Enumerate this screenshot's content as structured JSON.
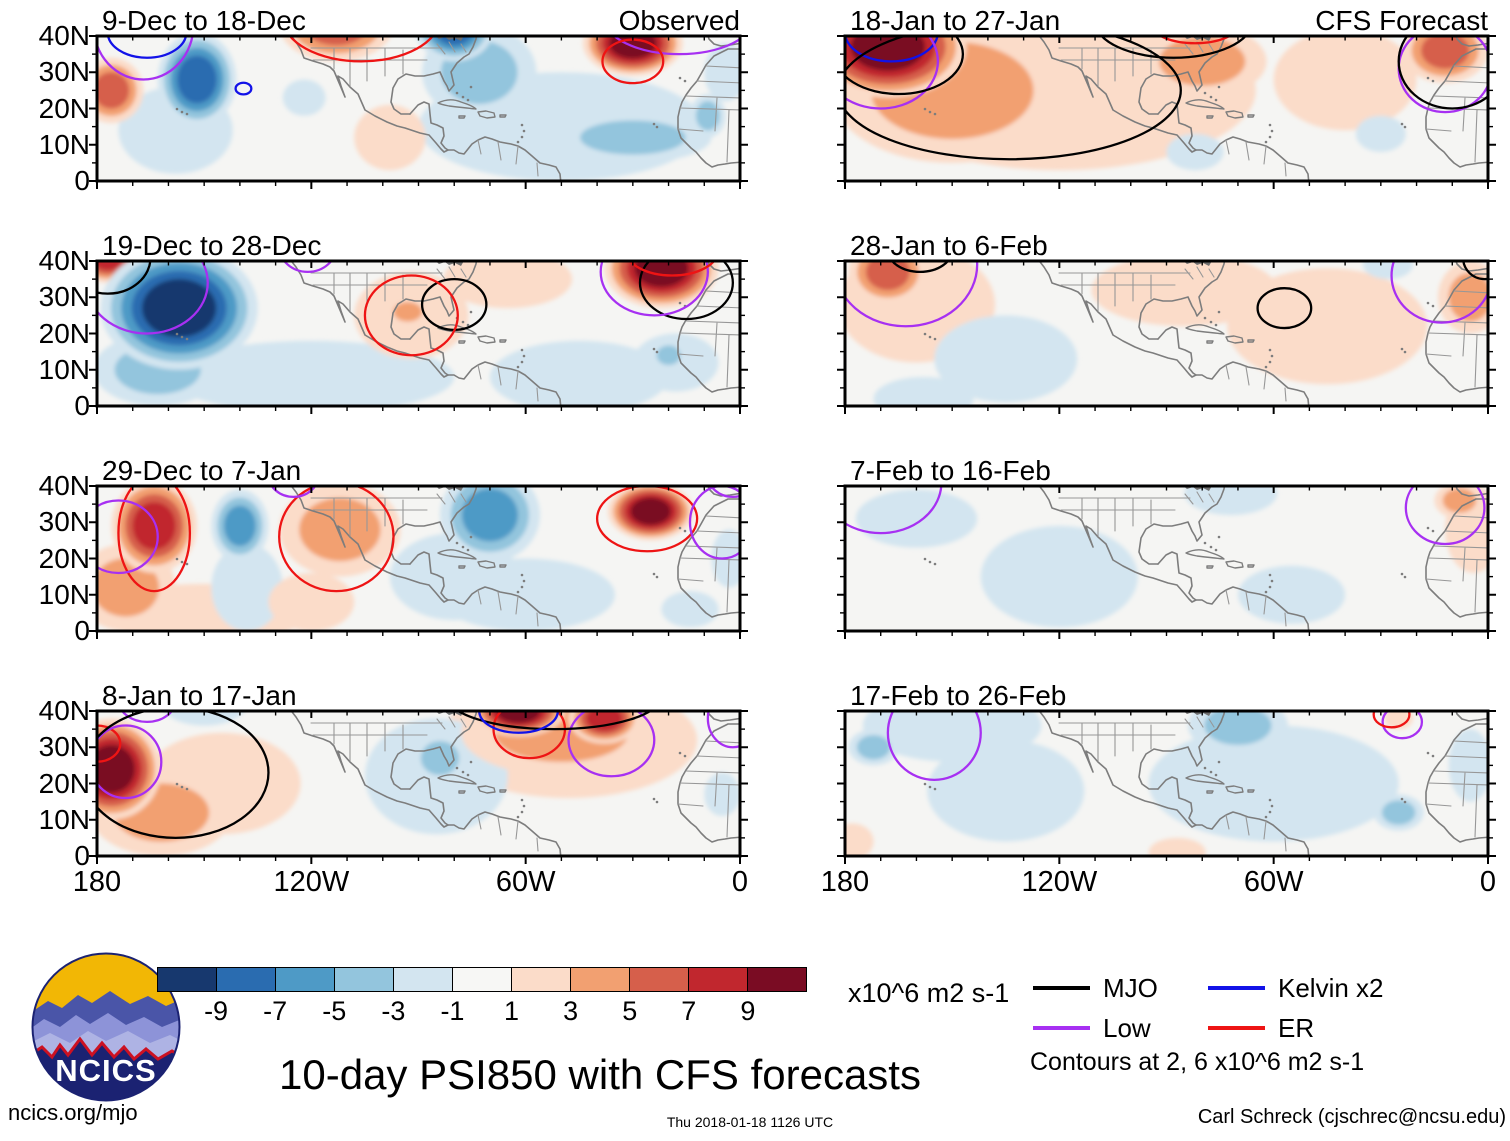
{
  "figure": {
    "bg": "#ffffff",
    "map_bg": "#f5f5f3",
    "coast_color": "#7d7d7d"
  },
  "title": "10-day PSI850 with CFS forecasts",
  "logo": {
    "label": "NCICS"
  },
  "footer": {
    "site": "ncics.org/mjo",
    "timestamp": "Thu 2018-01-18 1126 UTC",
    "credit": "Carl Schreck (cjschrec@ncsu.edu)"
  },
  "axes": {
    "x_tick_labels": [
      "180",
      "120W",
      "60W",
      "0"
    ],
    "x_tick_lons": [
      -180,
      -120,
      -60,
      0
    ],
    "y_tick_labels": [
      "40N",
      "30N",
      "20N",
      "10N",
      "0"
    ],
    "y_tick_lats": [
      40,
      30,
      20,
      10,
      0
    ],
    "lon_range": [
      -180,
      0
    ],
    "lat_range": [
      0,
      40
    ]
  },
  "colorbar": {
    "units": "x10^6 m2 s-1",
    "tick_labels": [
      "-9",
      "-7",
      "-5",
      "-3",
      "-1",
      "1",
      "3",
      "5",
      "7",
      "9"
    ],
    "colors": [
      "#17386e",
      "#2a6cb0",
      "#4e9ac6",
      "#93c5dd",
      "#d3e5f0",
      "#f7f7f5",
      "#fbdcc9",
      "#f2a071",
      "#d65f4b",
      "#c1272e",
      "#7a0c23"
    ]
  },
  "legend": {
    "items": [
      {
        "label": "MJO",
        "wave": "mjo",
        "color": "#000000"
      },
      {
        "label": "Kelvin x2",
        "wave": "kelvin",
        "color": "#1212e8"
      },
      {
        "label": "Low",
        "wave": "low",
        "color": "#a730f2"
      },
      {
        "label": "ER",
        "wave": "er",
        "color": "#ee1414"
      }
    ],
    "note": "Contours at 2, 6 x10^6 m2 s-1"
  },
  "chart_data": {
    "type": "filled-contour-maps",
    "variable": "PSI850 anomaly",
    "units": "x10^6 m2 s-1",
    "contour_levels": [
      2,
      6
    ],
    "lon_range": [
      -180,
      0
    ],
    "lat_range": [
      0,
      40
    ],
    "anomaly_format": [
      "lon",
      "lat",
      "rlon_deg",
      "rlat_deg",
      "peak_value"
    ],
    "contour_format": [
      "wave",
      "lon",
      "lat",
      "rlon_deg",
      "rlat_deg"
    ],
    "panels": [
      {
        "id": "l1",
        "row": 0,
        "column": "left",
        "title": "9-Dec to 18-Dec",
        "corner_label": "Observed",
        "anomalies": [
          [
            -176,
            25,
            9,
            9,
            5
          ],
          [
            -113,
            43,
            16,
            10,
            5
          ],
          [
            -98,
            12,
            10,
            9,
            1
          ],
          [
            -152,
            28,
            11,
            13,
            -7
          ],
          [
            -158,
            14,
            16,
            12,
            -1
          ],
          [
            -122,
            23,
            6,
            5,
            -1
          ],
          [
            -80,
            42,
            11,
            9,
            -7
          ],
          [
            -73,
            30,
            16,
            13,
            -3
          ],
          [
            -50,
            15,
            40,
            15,
            -1
          ],
          [
            -30,
            12,
            22,
            7,
            -3
          ],
          [
            -30,
            38,
            14,
            9,
            9
          ],
          [
            -9,
            18,
            5,
            6,
            -3
          ],
          [
            -4,
            30,
            6,
            8,
            -1
          ]
        ],
        "contours": [
          [
            "kelvin",
            -166,
            41,
            11,
            7
          ],
          [
            "kelvin",
            -139,
            25.5,
            2.2,
            1.6
          ],
          [
            "low",
            -167,
            43,
            14,
            15
          ],
          [
            "low",
            -17,
            45,
            21,
            10
          ],
          [
            "er",
            -106,
            45,
            22,
            12
          ],
          [
            "er",
            -30,
            33,
            8.5,
            6
          ]
        ]
      },
      {
        "id": "l2",
        "row": 1,
        "column": "left",
        "title": "19-Dec to 28-Dec",
        "corner_label": "",
        "anomalies": [
          [
            -177,
            41,
            9,
            7,
            7
          ],
          [
            -157,
            27,
            22,
            17,
            -9
          ],
          [
            -163,
            10,
            18,
            10,
            -3
          ],
          [
            -120,
            8,
            40,
            10,
            -1
          ],
          [
            -93,
            26,
            6,
            4,
            3
          ],
          [
            -92,
            25,
            16,
            12,
            1
          ],
          [
            -65,
            35,
            18,
            8,
            1
          ],
          [
            -22,
            38,
            16,
            11,
            9
          ],
          [
            -45,
            8,
            25,
            10,
            -1
          ],
          [
            -20,
            14,
            5,
            4,
            -3
          ],
          [
            -18,
            12,
            12,
            8,
            -1
          ]
        ],
        "contours": [
          [
            "mjo",
            -177,
            41,
            12,
            10
          ],
          [
            "mjo",
            -80,
            28,
            9,
            7
          ],
          [
            "mjo",
            -15,
            34,
            13,
            10
          ],
          [
            "low",
            -166,
            34,
            17,
            14
          ],
          [
            "low",
            -121,
            44,
            8,
            7
          ],
          [
            "low",
            -24,
            37,
            15,
            12
          ],
          [
            "er",
            -92,
            25,
            13,
            11
          ],
          [
            "er",
            -19,
            43,
            13,
            7
          ]
        ]
      },
      {
        "id": "l3",
        "row": 2,
        "column": "left",
        "title": "29-Dec to 7-Jan",
        "corner_label": "",
        "anomalies": [
          [
            -164,
            29,
            12,
            13,
            7
          ],
          [
            -172,
            12,
            14,
            12,
            3
          ],
          [
            -150,
            5,
            30,
            8,
            1
          ],
          [
            -140,
            29,
            8,
            10,
            -5
          ],
          [
            -138,
            12,
            10,
            12,
            -1
          ],
          [
            -112,
            28,
            17,
            13,
            3
          ],
          [
            -120,
            8,
            12,
            8,
            1
          ],
          [
            -70,
            32,
            14,
            13,
            -5
          ],
          [
            -80,
            15,
            18,
            12,
            -1
          ],
          [
            -60,
            10,
            25,
            10,
            -1
          ],
          [
            -25,
            33,
            12,
            8,
            9
          ],
          [
            -14,
            6,
            8,
            5,
            -1
          ],
          [
            -3,
            20,
            5,
            8,
            -1
          ]
        ],
        "contours": [
          [
            "er",
            -164,
            27,
            10,
            16
          ],
          [
            "er",
            -113,
            26,
            16,
            15
          ],
          [
            "er",
            -26,
            31,
            14,
            9
          ],
          [
            "low",
            -174,
            26,
            11,
            10
          ],
          [
            "low",
            -125,
            43,
            7,
            6
          ],
          [
            "low",
            -5,
            30,
            9,
            10
          ],
          [
            "low",
            -2,
            43,
            7,
            6
          ]
        ]
      },
      {
        "id": "l4",
        "row": 3,
        "column": "left",
        "title": "8-Jan to 17-Jan",
        "corner_label": "",
        "anomalies": [
          [
            -176,
            24,
            14,
            14,
            9
          ],
          [
            -162,
            12,
            20,
            12,
            3
          ],
          [
            -145,
            20,
            22,
            14,
            1
          ],
          [
            -150,
            42,
            12,
            6,
            -1
          ],
          [
            -85,
            22,
            20,
            16,
            -1
          ],
          [
            -84,
            27,
            8,
            7,
            -3
          ],
          [
            -62,
            40,
            13,
            7,
            9
          ],
          [
            -38,
            38,
            10,
            7,
            7
          ],
          [
            -50,
            34,
            28,
            12,
            3
          ],
          [
            -48,
            32,
            36,
            16,
            1
          ],
          [
            -5,
            17,
            5,
            6,
            -1
          ]
        ],
        "contours": [
          [
            "er",
            -180,
            31,
            6.5,
            5
          ],
          [
            "er",
            -59,
            35,
            10,
            8
          ],
          [
            "low",
            -172,
            26,
            10,
            10
          ],
          [
            "low",
            -166,
            43,
            8,
            6
          ],
          [
            "low",
            -36,
            32,
            12,
            10
          ],
          [
            "low",
            -2,
            38,
            7,
            8
          ],
          [
            "mjo",
            -158,
            23,
            26,
            18
          ],
          [
            "mjo",
            -52,
            44,
            30,
            9
          ],
          [
            "kelvin",
            -62,
            40,
            11,
            6
          ]
        ]
      },
      {
        "id": "r1",
        "row": 0,
        "column": "right",
        "title": "18-Jan to 27-Jan",
        "corner_label": "CFS Forecast",
        "anomalies": [
          [
            -168,
            37,
            22,
            14,
            9
          ],
          [
            -150,
            25,
            34,
            20,
            3
          ],
          [
            -120,
            25,
            55,
            22,
            1
          ],
          [
            -80,
            33,
            18,
            10,
            3
          ],
          [
            -40,
            28,
            20,
            14,
            1
          ],
          [
            -12,
            36,
            12,
            9,
            5
          ],
          [
            -82,
            8,
            8,
            5,
            -1
          ],
          [
            -30,
            13,
            7,
            5,
            -1
          ]
        ],
        "contours": [
          [
            "kelvin",
            -167,
            41,
            13,
            8
          ],
          [
            "low",
            -170,
            33,
            16,
            13
          ],
          [
            "low",
            -12,
            31,
            13,
            12
          ],
          [
            "mjo",
            -134,
            25,
            48,
            19
          ],
          [
            "mjo",
            -165,
            35,
            18,
            11
          ],
          [
            "mjo",
            -88,
            44,
            22,
            10
          ],
          [
            "mjo",
            -10,
            33,
            15,
            13
          ],
          [
            "er",
            -82,
            43,
            12,
            5
          ]
        ]
      },
      {
        "id": "r2",
        "row": 1,
        "column": "right",
        "title": "28-Jan to 6-Feb",
        "corner_label": "",
        "anomalies": [
          [
            -168,
            37,
            11,
            9,
            5
          ],
          [
            -160,
            28,
            22,
            16,
            1
          ],
          [
            -135,
            13,
            20,
            12,
            -1
          ],
          [
            -158,
            2,
            14,
            6,
            -1
          ],
          [
            -85,
            32,
            26,
            10,
            1
          ],
          [
            -45,
            22,
            28,
            16,
            1
          ],
          [
            -5,
            30,
            9,
            10,
            3
          ],
          [
            -28,
            39,
            7,
            4,
            -1
          ]
        ],
        "contours": [
          [
            "low",
            -163,
            39,
            20,
            17
          ],
          [
            "low",
            -13,
            36,
            14,
            13
          ],
          [
            "mjo",
            -159,
            43,
            9,
            6
          ],
          [
            "mjo",
            -57,
            27,
            7.5,
            5.5
          ],
          [
            "mjo",
            -1,
            41,
            6,
            6
          ]
        ]
      },
      {
        "id": "r3",
        "row": 2,
        "column": "right",
        "title": "7-Feb to 16-Feb",
        "corner_label": "",
        "anomalies": [
          [
            -160,
            31,
            17,
            8,
            -1
          ],
          [
            -120,
            15,
            22,
            14,
            -1
          ],
          [
            -72,
            38,
            13,
            6,
            -1
          ],
          [
            -55,
            10,
            15,
            8,
            -1
          ],
          [
            -8,
            36,
            7,
            5,
            3
          ],
          [
            -4,
            28,
            8,
            12,
            1
          ]
        ],
        "contours": [
          [
            "low",
            -170,
            41,
            17,
            14
          ],
          [
            "low",
            -12,
            34,
            11,
            10
          ]
        ]
      },
      {
        "id": "r4",
        "row": 3,
        "column": "right",
        "title": "17-Feb to 26-Feb",
        "corner_label": "",
        "anomalies": [
          [
            -172,
            30,
            7,
            5,
            -3
          ],
          [
            -150,
            36,
            25,
            10,
            -1
          ],
          [
            -135,
            18,
            22,
            14,
            -1
          ],
          [
            -70,
            36,
            14,
            8,
            -3
          ],
          [
            -60,
            20,
            35,
            16,
            -1
          ],
          [
            -25,
            12,
            7,
            5,
            -3
          ],
          [
            -5,
            25,
            6,
            10,
            -1
          ],
          [
            -25,
            38,
            4,
            3,
            1
          ],
          [
            -178,
            4,
            6,
            5,
            1
          ],
          [
            -87,
            1,
            8,
            4,
            1
          ]
        ],
        "contours": [
          [
            "low",
            -155,
            34,
            13,
            13
          ],
          [
            "low",
            -24,
            37,
            5.5,
            4.5
          ],
          [
            "er",
            -27,
            39,
            5,
            3.5
          ]
        ]
      }
    ]
  }
}
